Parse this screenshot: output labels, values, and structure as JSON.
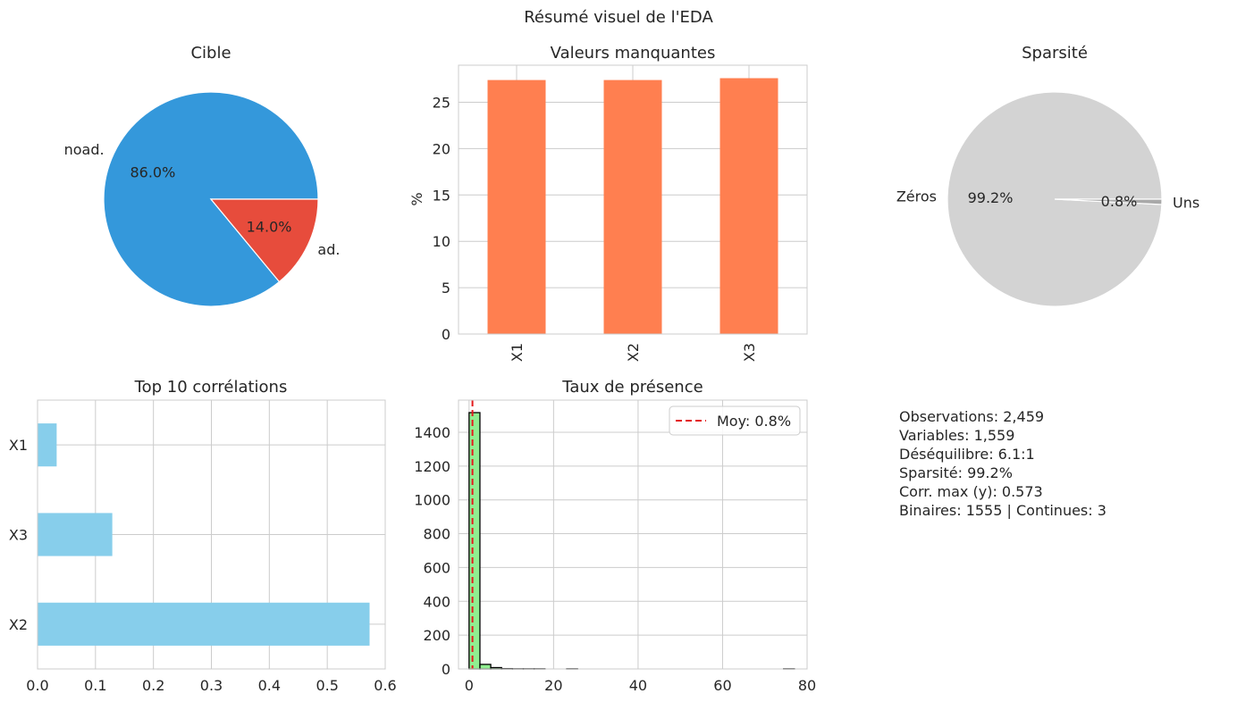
{
  "figure_title": "Résumé visuel de l'EDA",
  "colors": {
    "pie_primary": "#3498db",
    "pie_secondary": "#e74c3c",
    "bars_missing": "#ff7f50",
    "bars_corr": "#87ceeb",
    "hist_fill": "#90ee90",
    "mean_line": "#e41a1c",
    "sparsity_zero": "#d3d3d3",
    "sparsity_one": "#a9a9a9",
    "grid": "#cccccc"
  },
  "chart_data": [
    {
      "type": "pie",
      "title": "Cible",
      "labels": [
        "noad.",
        "ad."
      ],
      "values": [
        86.0,
        14.0
      ],
      "autopct": [
        "86.0%",
        "14.0%"
      ]
    },
    {
      "type": "bar",
      "title": "Valeurs manquantes",
      "categories": [
        "X1",
        "X2",
        "X3"
      ],
      "values": [
        27.4,
        27.4,
        27.6
      ],
      "xlabel": "",
      "ylabel": "%",
      "ylim": [
        0,
        29
      ],
      "yticks": [
        0,
        5,
        10,
        15,
        20,
        25
      ],
      "grid": true
    },
    {
      "type": "pie",
      "title": "Sparsité",
      "labels": [
        "Zéros",
        "Uns"
      ],
      "values": [
        99.2,
        0.8
      ],
      "autopct": [
        "99.2%",
        "0.8%"
      ]
    },
    {
      "type": "bar",
      "orientation": "horizontal",
      "title": "Top 10 corrélations",
      "categories": [
        "X1",
        "X3",
        "X2"
      ],
      "values": [
        0.033,
        0.129,
        0.573
      ],
      "xlim": [
        0,
        0.6
      ],
      "xticks": [
        "0.0",
        "0.1",
        "0.2",
        "0.3",
        "0.4",
        "0.5",
        "0.6"
      ],
      "grid": true
    },
    {
      "type": "bar",
      "subtype": "histogram",
      "title": "Taux de présence",
      "bin_edges": [
        0,
        2.57,
        5.13,
        7.7,
        10.27,
        12.83,
        15.4,
        17.97,
        20.53,
        23.1,
        25.67,
        28.23,
        30.8,
        33.37,
        35.93,
        38.5,
        41.07,
        43.63,
        46.2,
        48.77,
        51.33,
        53.9,
        56.47,
        59.03,
        61.6,
        64.17,
        66.73,
        69.3,
        71.87,
        74.43,
        77
      ],
      "counts": [
        1516,
        27,
        8,
        2,
        1,
        1,
        1,
        0,
        0,
        1,
        0,
        0,
        0,
        0,
        0,
        0,
        0,
        0,
        0,
        0,
        0,
        0,
        0,
        0,
        0,
        0,
        0,
        0,
        0,
        1
      ],
      "xlim": [
        -2.5,
        80
      ],
      "ylim": [
        0,
        1590
      ],
      "xticks": [
        0,
        20,
        40,
        60,
        80
      ],
      "yticks": [
        0,
        200,
        400,
        600,
        800,
        1000,
        1200,
        1400
      ],
      "mean_line": 0.8,
      "legend": "Moy: 0.8%",
      "legend_position": "top-right",
      "grid": true
    }
  ],
  "summary_lines": [
    "Observations: 2,459",
    "Variables: 1,559",
    "Déséquilibre: 6.1:1",
    "Sparsité: 99.2%",
    "Corr. max (y): 0.573",
    "Binaires: 1555 | Continues: 3"
  ]
}
